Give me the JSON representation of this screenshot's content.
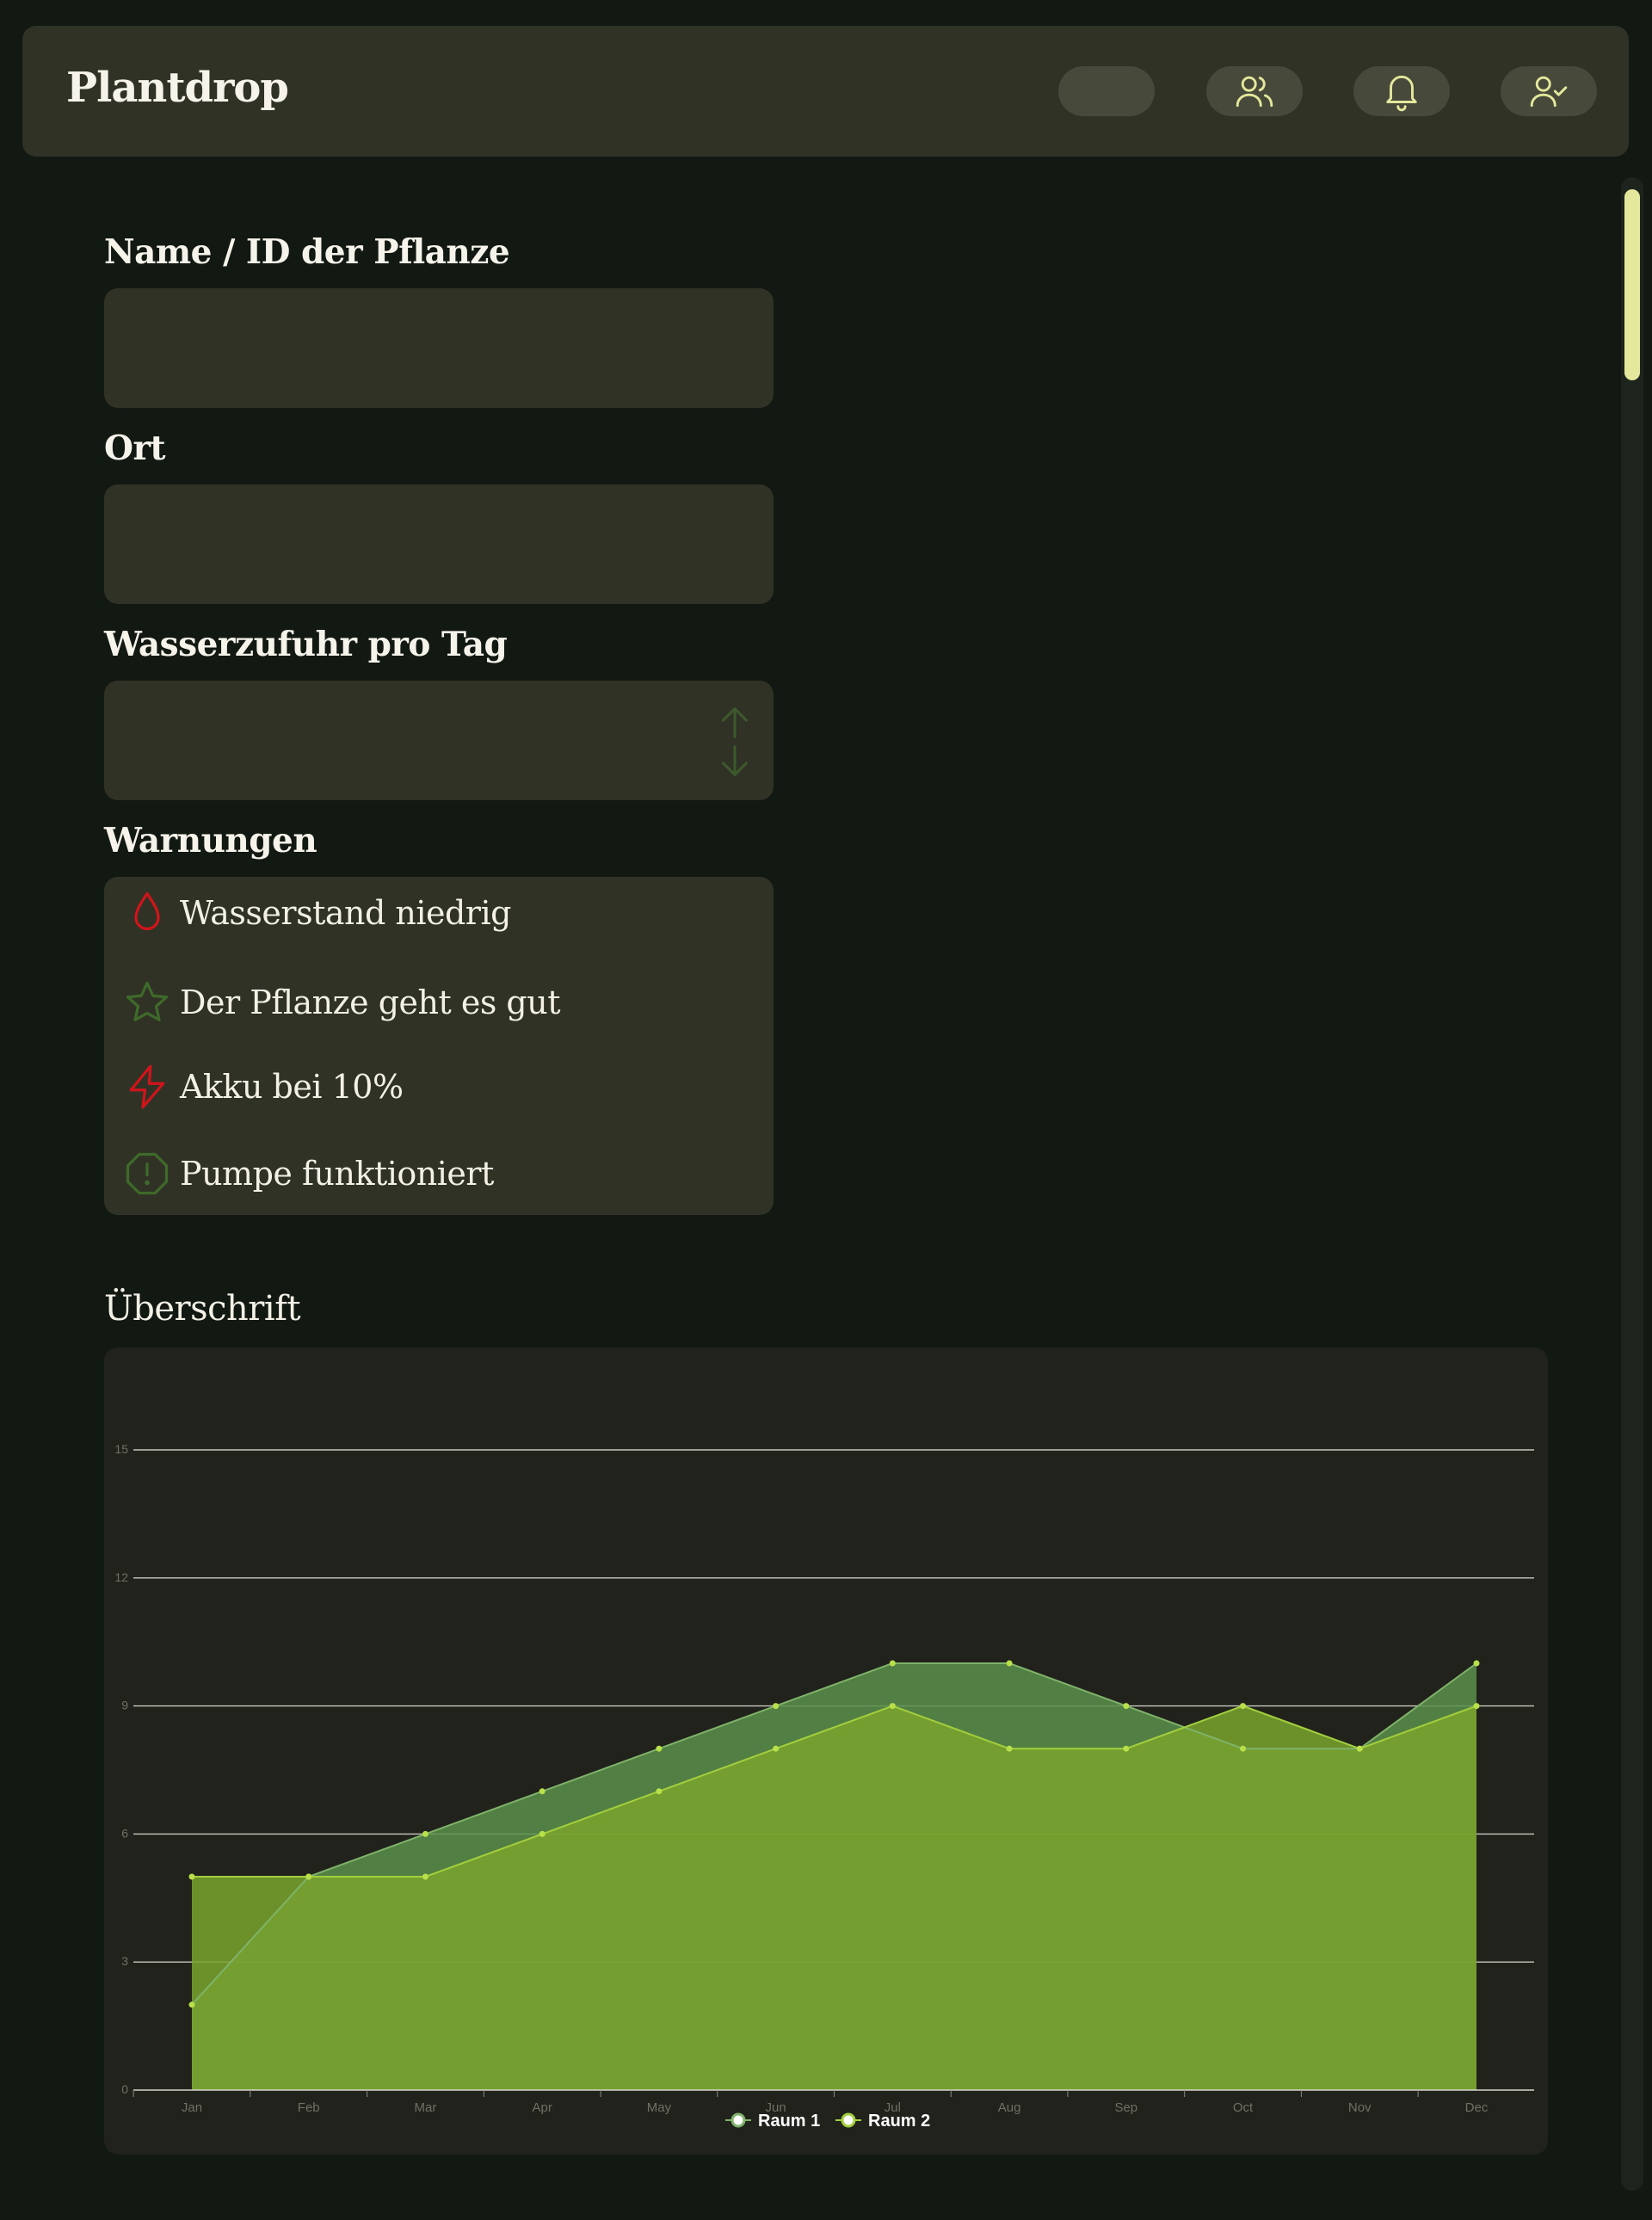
{
  "header": {
    "app_title": "Plantdrop",
    "icons": [
      "blank-pill",
      "users-icon",
      "bell-icon",
      "user-check-icon"
    ],
    "icon_color": "#e3e89c"
  },
  "form": {
    "name_label": "Name / ID der Pflanze",
    "name_value": "",
    "location_label": "Ort",
    "location_value": "",
    "water_label": "Wasserzufuhr pro Tag",
    "water_value": ""
  },
  "warnings": {
    "label": "Warnungen",
    "items": [
      {
        "icon": "water-drop-icon",
        "text": "Wasserstand niedrig",
        "color": "#d1141a"
      },
      {
        "icon": "star-icon",
        "text": "Der Pflanze geht es gut",
        "color": "#3f6a2a"
      },
      {
        "icon": "lightning-icon",
        "text": "Akku bei 10%",
        "color": "#d1141a"
      },
      {
        "icon": "alert-octagon-icon",
        "text": "Pumpe funktioniert",
        "color": "#3f6a2a"
      }
    ]
  },
  "chart": {
    "heading": "Überschrift"
  },
  "chart_data": {
    "type": "area",
    "categories": [
      "Jan",
      "Feb",
      "Mar",
      "Apr",
      "May",
      "Jun",
      "Jul",
      "Aug",
      "Sep",
      "Oct",
      "Nov",
      "Dec"
    ],
    "series": [
      {
        "name": "Raum 1",
        "values": [
          2,
          5,
          6,
          7,
          8,
          9,
          10,
          10,
          9,
          8,
          8,
          10
        ],
        "color": "#5b8f4a"
      },
      {
        "name": "Raum 2",
        "values": [
          5,
          5,
          5,
          6,
          7,
          8,
          9,
          8,
          8,
          9,
          8,
          9
        ],
        "color": "#7aa52d"
      }
    ],
    "ylim": [
      0,
      15
    ],
    "yticks": [
      0,
      3,
      6,
      9,
      12,
      15
    ],
    "grid": true,
    "legend": "bottom-center"
  }
}
